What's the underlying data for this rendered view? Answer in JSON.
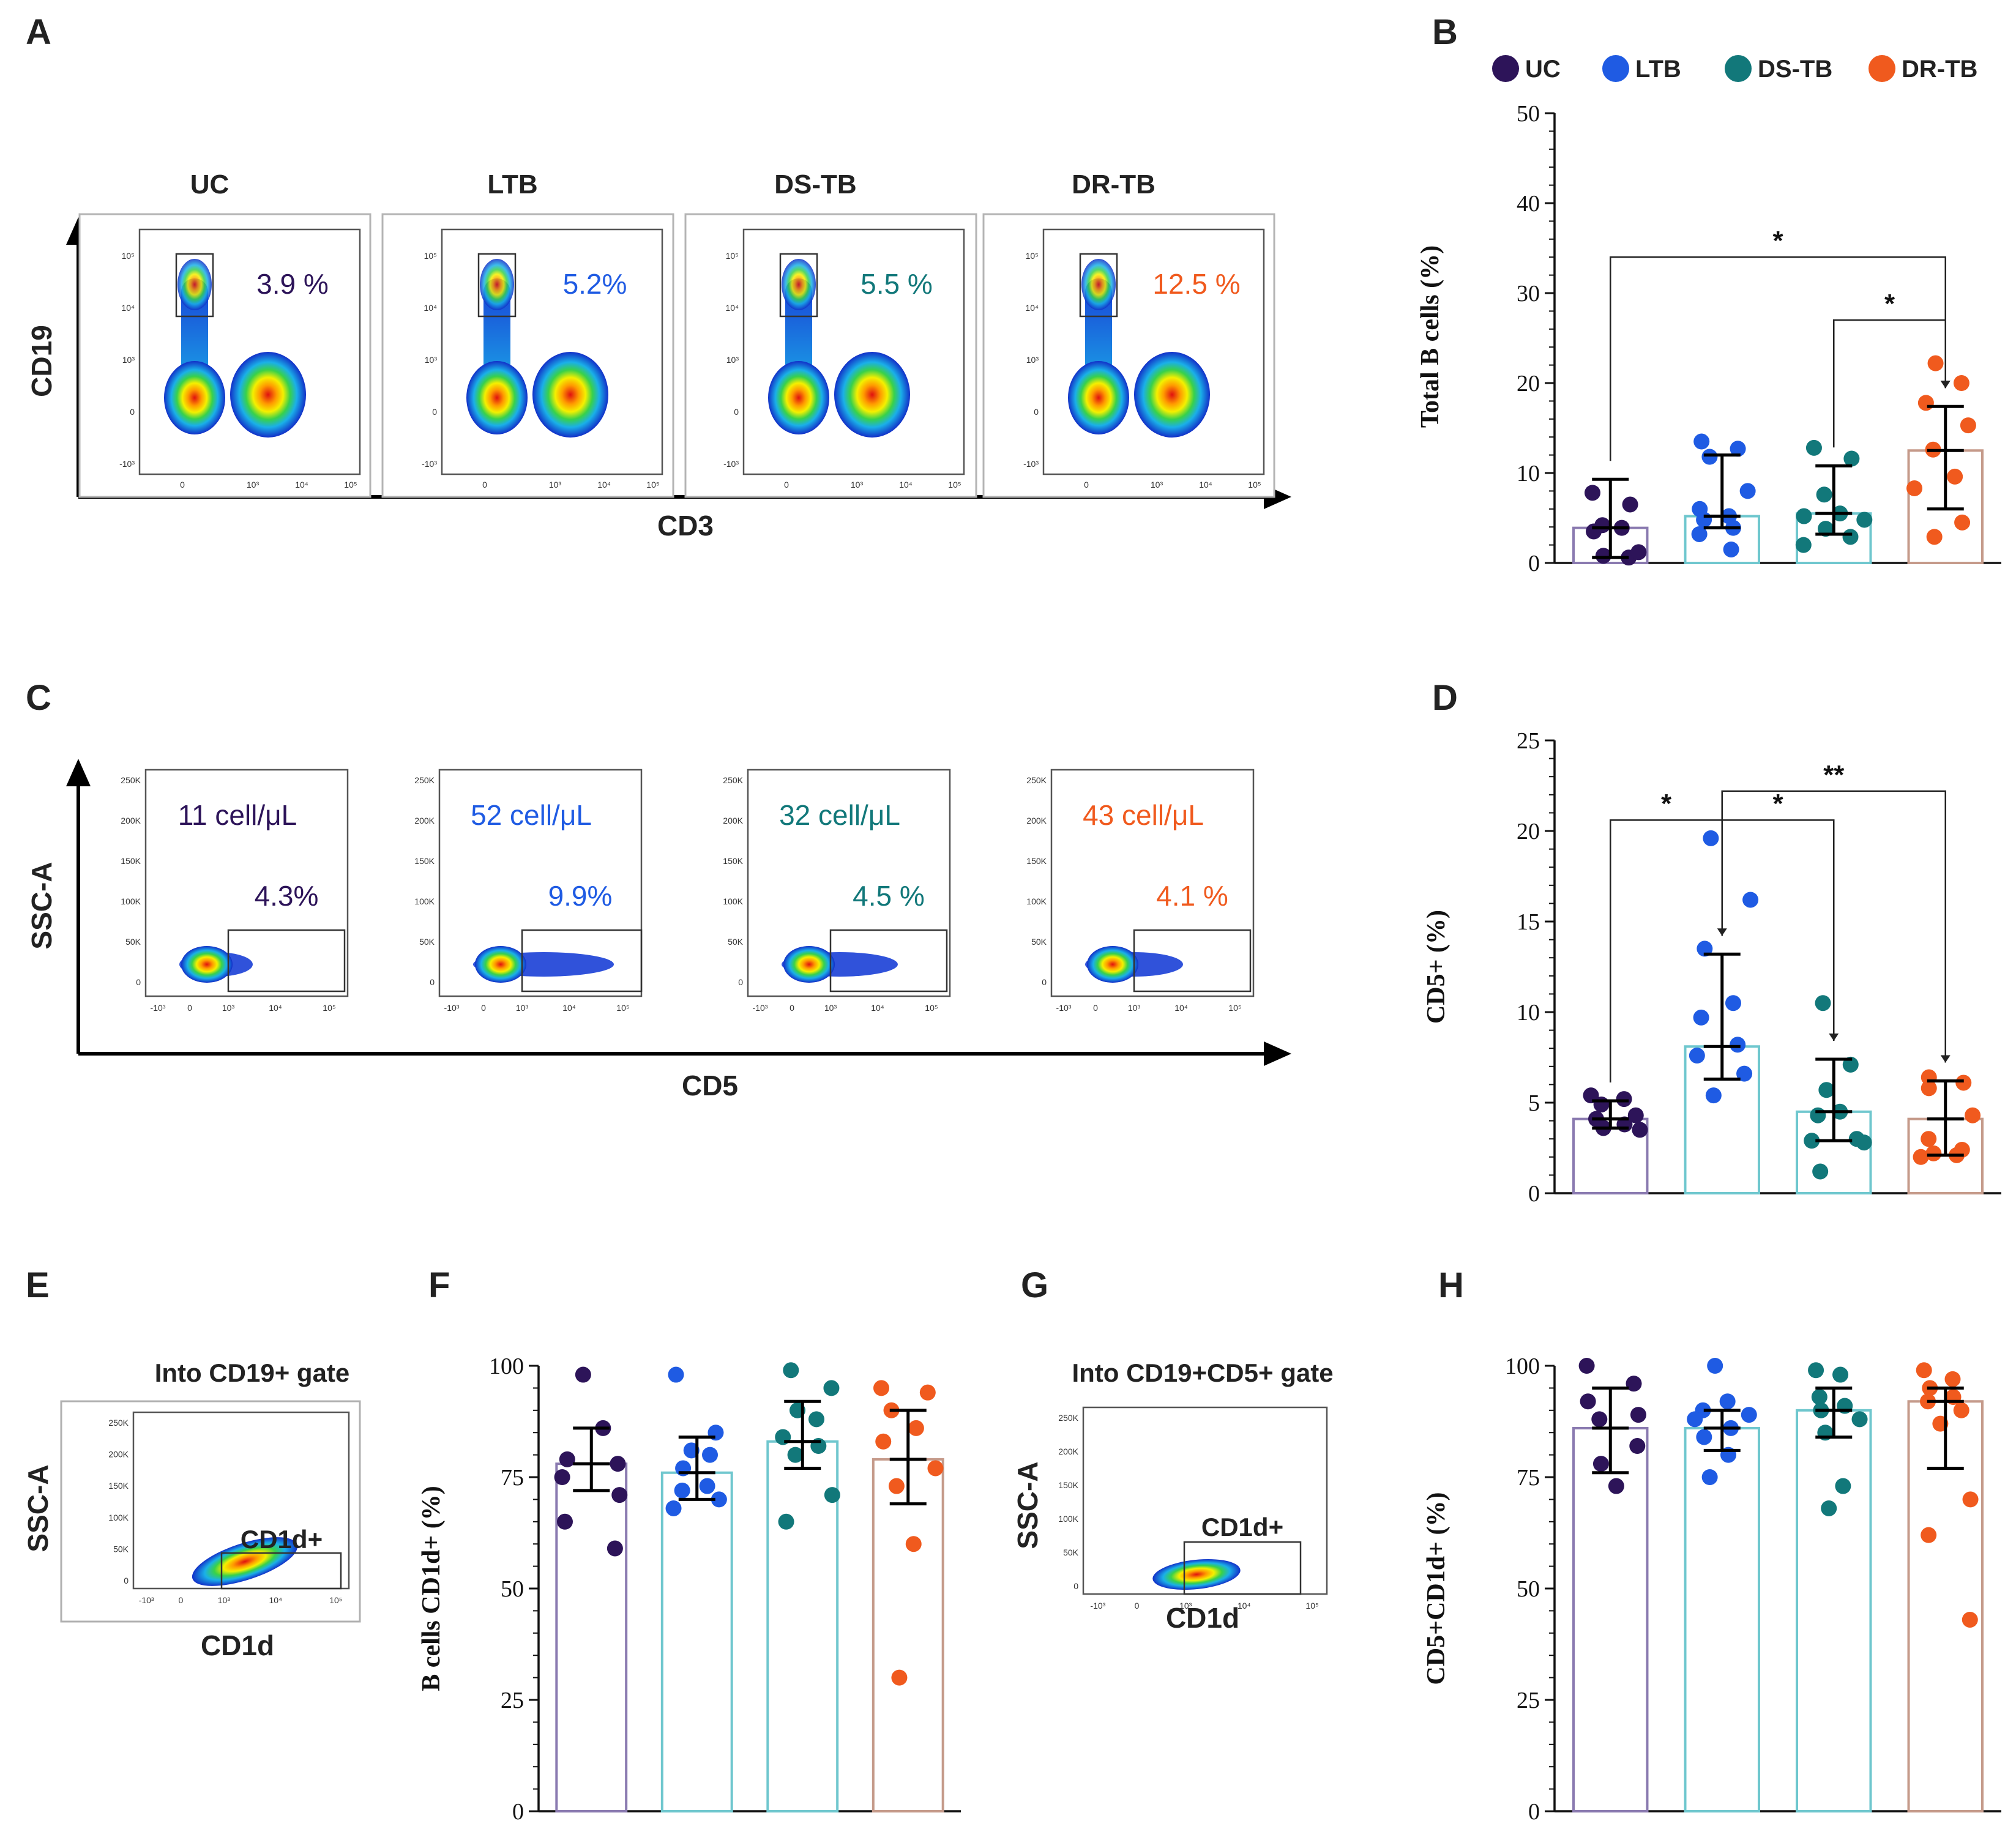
{
  "colors": {
    "UC": "#2d1459",
    "LTB": "#1f5be3",
    "DS-TB": "#12787a",
    "DR-TB": "#f05a1e"
  },
  "bar_edges": {
    "B": [
      "#8a7ab0",
      "#6fc7ce",
      "#6fc7ce",
      "#c59a8a"
    ],
    "D": [
      "#8a7ab0",
      "#6fc7ce",
      "#6fc7ce",
      "#c59a8a"
    ],
    "F": [
      "#8a7ab0",
      "#6fc7ce",
      "#6fc7ce",
      "#c59a8a"
    ],
    "H": [
      "#8a7ab0",
      "#6fc7ce",
      "#6fc7ce",
      "#c59a8a"
    ]
  },
  "panels": {
    "A": {
      "label": "A",
      "groups": [
        "UC",
        "LTB",
        "DS-TB",
        "DR-TB"
      ],
      "percents": [
        "3.9 %",
        "5.2%",
        "5.5 %",
        "12.5 %"
      ],
      "ylabel": "CD19",
      "xlabel": "CD3",
      "yticks": [
        "10⁵",
        "10⁴",
        "10³",
        "0",
        "-10³"
      ],
      "xticks": [
        "0",
        "10³",
        "10⁴",
        "10⁵"
      ]
    },
    "C": {
      "label": "C",
      "counts": [
        "11 cell/μL",
        "52 cell/μL",
        "32 cell/μL",
        "43 cell/μL"
      ],
      "percents": [
        "4.3%",
        "9.9%",
        "4.5 %",
        "4.1 %"
      ],
      "ylabel": "SSC-A",
      "xlabel": "CD5",
      "yticks": [
        "250K",
        "200K",
        "150K",
        "100K",
        "50K",
        "0"
      ],
      "xticks": [
        "-10³",
        "0",
        "10³",
        "10⁴",
        "10⁵"
      ]
    },
    "E": {
      "label": "E",
      "title": "Into CD19+ gate",
      "gate": "CD1d+",
      "ylabel": "SSC-A",
      "xlabel": "CD1d",
      "yticks": [
        "250K",
        "200K",
        "150K",
        "100K",
        "50K",
        "0"
      ],
      "xticks": [
        "-10³",
        "0",
        "10³",
        "10⁴",
        "10⁵"
      ]
    },
    "G": {
      "label": "G",
      "title": "Into CD19+CD5+ gate",
      "gate": "CD1d+",
      "ylabel": "SSC-A",
      "xlabel": "CD1d",
      "yticks": [
        "250K",
        "200K",
        "150K",
        "100K",
        "50K",
        "0"
      ],
      "xticks": [
        "-10³",
        "0",
        "10³",
        "10⁴",
        "10⁵"
      ]
    }
  },
  "legend": [
    "UC",
    "LTB",
    "DS-TB",
    "DR-TB"
  ],
  "chart_data": [
    {
      "panel": "B",
      "label": "B",
      "type": "bar",
      "categories": [
        "UC",
        "LTB",
        "DS-TB",
        "DR-TB"
      ],
      "ylabel": "Total B cells (%)",
      "ylim": [
        0,
        50
      ],
      "yticks": [
        0,
        10,
        20,
        30,
        40,
        50
      ],
      "ytick_labels": [
        "0",
        "10",
        "20",
        "30",
        "40",
        "50"
      ],
      "values": [
        3.9,
        5.2,
        5.5,
        12.5
      ],
      "err_low": [
        0.6,
        3.9,
        3.2,
        6.0
      ],
      "err_high": [
        9.3,
        12.0,
        10.8,
        17.4
      ],
      "points": [
        [
          7.8,
          6.5,
          4.2,
          3.9,
          3.5,
          0.6,
          0.8,
          1.2
        ],
        [
          13.5,
          12.7,
          11.8,
          8.0,
          6.0,
          5.2,
          4.8,
          3.9,
          3.2,
          1.5
        ],
        [
          12.8,
          11.6,
          7.6,
          5.5,
          5.2,
          4.8,
          3.8,
          2.9,
          2.0
        ],
        [
          22.2,
          20.0,
          17.8,
          15.3,
          12.6,
          9.6,
          8.3,
          4.5,
          2.9
        ]
      ],
      "significance": [
        {
          "from": 0,
          "to": 3,
          "label": "*",
          "y": 34
        },
        {
          "from": 2,
          "to": 3,
          "label": "*",
          "y": 27
        }
      ]
    },
    {
      "panel": "D",
      "label": "D",
      "type": "bar",
      "categories": [
        "UC",
        "LTB",
        "DS-TB",
        "DR-TB"
      ],
      "ylabel": "CD5+ (%)",
      "ylim": [
        0,
        25
      ],
      "yticks": [
        0,
        5,
        10,
        15,
        20,
        25
      ],
      "ytick_labels": [
        "0",
        "5",
        "10",
        "15",
        "20",
        "25"
      ],
      "values": [
        4.1,
        8.1,
        4.5,
        4.1
      ],
      "err_low": [
        3.6,
        6.3,
        2.9,
        2.1
      ],
      "err_high": [
        5.1,
        13.2,
        7.4,
        6.2
      ],
      "points": [
        [
          5.4,
          5.2,
          4.9,
          4.3,
          4.1,
          3.8,
          3.6,
          3.5
        ],
        [
          19.6,
          16.2,
          13.5,
          10.5,
          9.7,
          8.2,
          7.6,
          6.6,
          5.4
        ],
        [
          10.5,
          7.1,
          5.7,
          4.5,
          4.3,
          3.0,
          2.9,
          2.8,
          1.2
        ],
        [
          6.4,
          6.1,
          5.8,
          4.3,
          3.0,
          2.4,
          2.2,
          2.1,
          2.0
        ]
      ],
      "significance": [
        {
          "from": 0,
          "to": 1,
          "label": "*",
          "y": 20.6
        },
        {
          "from": 1,
          "to": 2,
          "label": "*",
          "y": 20.6
        },
        {
          "from": 1,
          "to": 3,
          "label": "**",
          "y": 22.2
        }
      ]
    },
    {
      "panel": "F",
      "label": "F",
      "type": "bar",
      "categories": [
        "UC",
        "LTB",
        "DS-TB",
        "DR-TB"
      ],
      "ylabel": "B cells CD1d+ (%)",
      "ylim": [
        0,
        100
      ],
      "yticks": [
        0,
        25,
        50,
        75,
        100
      ],
      "ytick_labels": [
        "0",
        "25",
        "50",
        "75",
        "100"
      ],
      "values": [
        78,
        76,
        83,
        79
      ],
      "err_low": [
        72,
        70,
        77,
        69
      ],
      "err_high": [
        86,
        84,
        92,
        90
      ],
      "points": [
        [
          98,
          86,
          79,
          78,
          75,
          71,
          65,
          59
        ],
        [
          98,
          85,
          81,
          80,
          77,
          73,
          72,
          70,
          68
        ],
        [
          99,
          95,
          90,
          88,
          84,
          82,
          80,
          71,
          65
        ],
        [
          95,
          94,
          90,
          86,
          83,
          77,
          73,
          60,
          30
        ]
      ],
      "significance": []
    },
    {
      "panel": "H",
      "label": "H",
      "type": "bar",
      "categories": [
        "UC",
        "LTB",
        "DS-TB",
        "DR-TB"
      ],
      "ylabel": "CD5+CD1d+ (%)",
      "ylim": [
        0,
        100
      ],
      "yticks": [
        0,
        25,
        50,
        75,
        100
      ],
      "ytick_labels": [
        "0",
        "25",
        "50",
        "75",
        "100"
      ],
      "values": [
        86,
        86,
        90,
        92
      ],
      "err_low": [
        76,
        81,
        84,
        77
      ],
      "err_high": [
        95,
        90,
        95,
        95
      ],
      "points": [
        [
          100,
          96,
          92,
          89,
          88,
          82,
          78,
          73
        ],
        [
          100,
          92,
          90,
          89,
          88,
          86,
          84,
          80,
          75
        ],
        [
          99,
          98,
          93,
          91,
          90,
          88,
          85,
          73,
          68
        ],
        [
          99,
          97,
          95,
          93,
          92,
          90,
          87,
          70,
          62,
          43
        ]
      ],
      "significance": []
    }
  ]
}
